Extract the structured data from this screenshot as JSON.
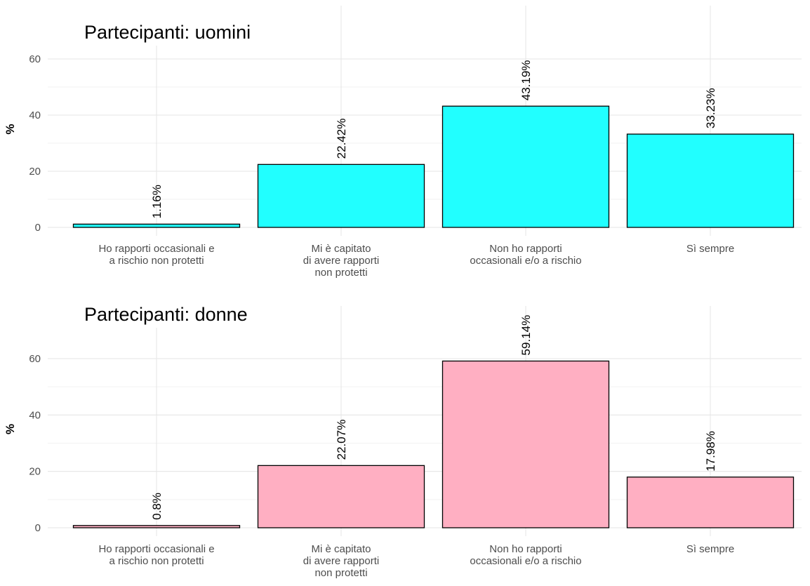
{
  "chart_data": [
    {
      "type": "bar",
      "title": "Partecipanti: uomini",
      "ylabel": "%",
      "xlabel": "",
      "ylim": [
        0,
        70
      ],
      "yticks": [
        0,
        20,
        40,
        60
      ],
      "grid": true,
      "bar_color": "#21ffff",
      "categories": [
        [
          "Ho rapporti occasionali e",
          "a rischio non protetti"
        ],
        [
          "Mi è capitato",
          "di avere rapporti",
          "non protetti"
        ],
        [
          "Non ho rapporti",
          "occasionali e/o a rischio"
        ],
        [
          "Sì sempre"
        ]
      ],
      "values": [
        1.16,
        22.42,
        43.19,
        33.23
      ],
      "value_labels": [
        "1.16%",
        "22.42%",
        "43.19%",
        "33.23%"
      ]
    },
    {
      "type": "bar",
      "title": "Partecipanti: donne",
      "ylabel": "%",
      "xlabel": "",
      "ylim": [
        0,
        70
      ],
      "yticks": [
        0,
        20,
        40,
        60
      ],
      "grid": true,
      "bar_color": "#ffafc2",
      "categories": [
        [
          "Ho rapporti occasionali e",
          "a rischio non protetti"
        ],
        [
          "Mi è capitato",
          "di avere rapporti",
          "non protetti"
        ],
        [
          "Non ho rapporti",
          "occasionali e/o a rischio"
        ],
        [
          "Sì sempre"
        ]
      ],
      "values": [
        0.8,
        22.07,
        59.14,
        17.98
      ],
      "value_labels": [
        "0.8%",
        "22.07%",
        "59.14%",
        "17.98%"
      ]
    }
  ]
}
